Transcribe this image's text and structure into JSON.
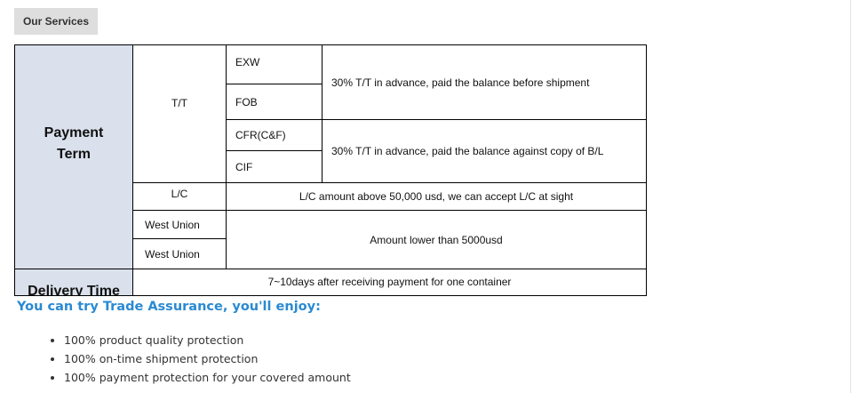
{
  "section_tag": "Our Services",
  "table": {
    "payment_term": "Payment Term",
    "tt": "T/T",
    "exw": "EXW",
    "fob": "FOB",
    "cfr": "CFR(C&F)",
    "cif": "CIF",
    "tt_note1": "30% T/T in advance, paid the balance before shipment",
    "tt_note2": "30% T/T in advance, paid the balance against copy of B/L",
    "lc": "L/C",
    "lc_note": "L/C amount above 50,000 usd, we can accept L/C at sight",
    "wu1": "West Union",
    "wu2": "West Union",
    "wu_note": "Amount lower than 5000usd",
    "delivery_time": "Delivery Time",
    "delivery_note": "7~10days after receiving payment for one container"
  },
  "assurance": {
    "heading": "You can try Trade Assurance, you'll enjoy:",
    "items": [
      "100% product quality protection",
      "100% on-time shipment protection",
      "100% payment protection for your covered amount"
    ]
  }
}
